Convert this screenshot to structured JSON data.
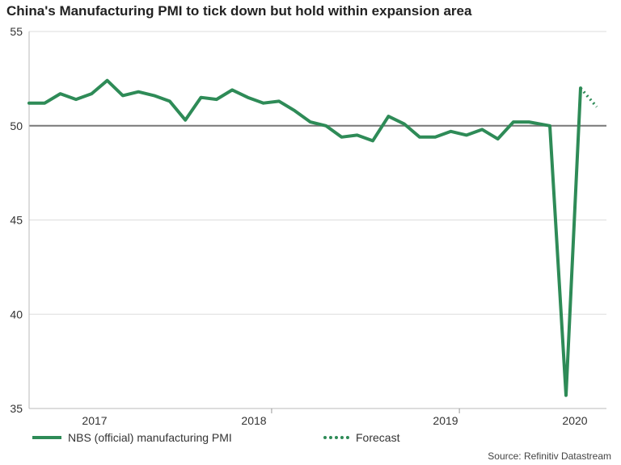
{
  "chart_data": {
    "type": "line",
    "title": "China's Manufacturing PMI to tick down but hold within expansion area",
    "xlabel": "",
    "ylabel": "",
    "ylim": [
      35,
      55
    ],
    "yticks": [
      35,
      40,
      45,
      50,
      55
    ],
    "year_labels": [
      "2017",
      "2018",
      "2019",
      "2020"
    ],
    "reference_line": 50,
    "series": [
      {
        "name": "NBS (official) manufacturing PMI",
        "style": "solid",
        "color": "#2e8b57",
        "start_month": "2016-09",
        "values": [
          51.2,
          51.2,
          51.7,
          51.4,
          51.7,
          52.4,
          51.6,
          51.8,
          51.6,
          51.3,
          50.3,
          51.5,
          51.4,
          51.9,
          51.5,
          51.2,
          51.3,
          50.8,
          50.2,
          50.0,
          49.4,
          49.5,
          49.2,
          50.5,
          50.1,
          49.4,
          49.4,
          49.7,
          49.5,
          49.8,
          49.3,
          50.2,
          50.2,
          50.0,
          35.7,
          52.0
        ]
      },
      {
        "name": "Forecast",
        "style": "dotted",
        "color": "#2e8b57",
        "start_month": "2020-03",
        "values": [
          52.0,
          51.0
        ]
      }
    ],
    "legend": [
      {
        "label": "NBS (official) manufacturing PMI",
        "style": "solid"
      },
      {
        "label": "Forecast",
        "style": "dotted"
      }
    ],
    "source": "Source: Refinitiv Datastream"
  }
}
